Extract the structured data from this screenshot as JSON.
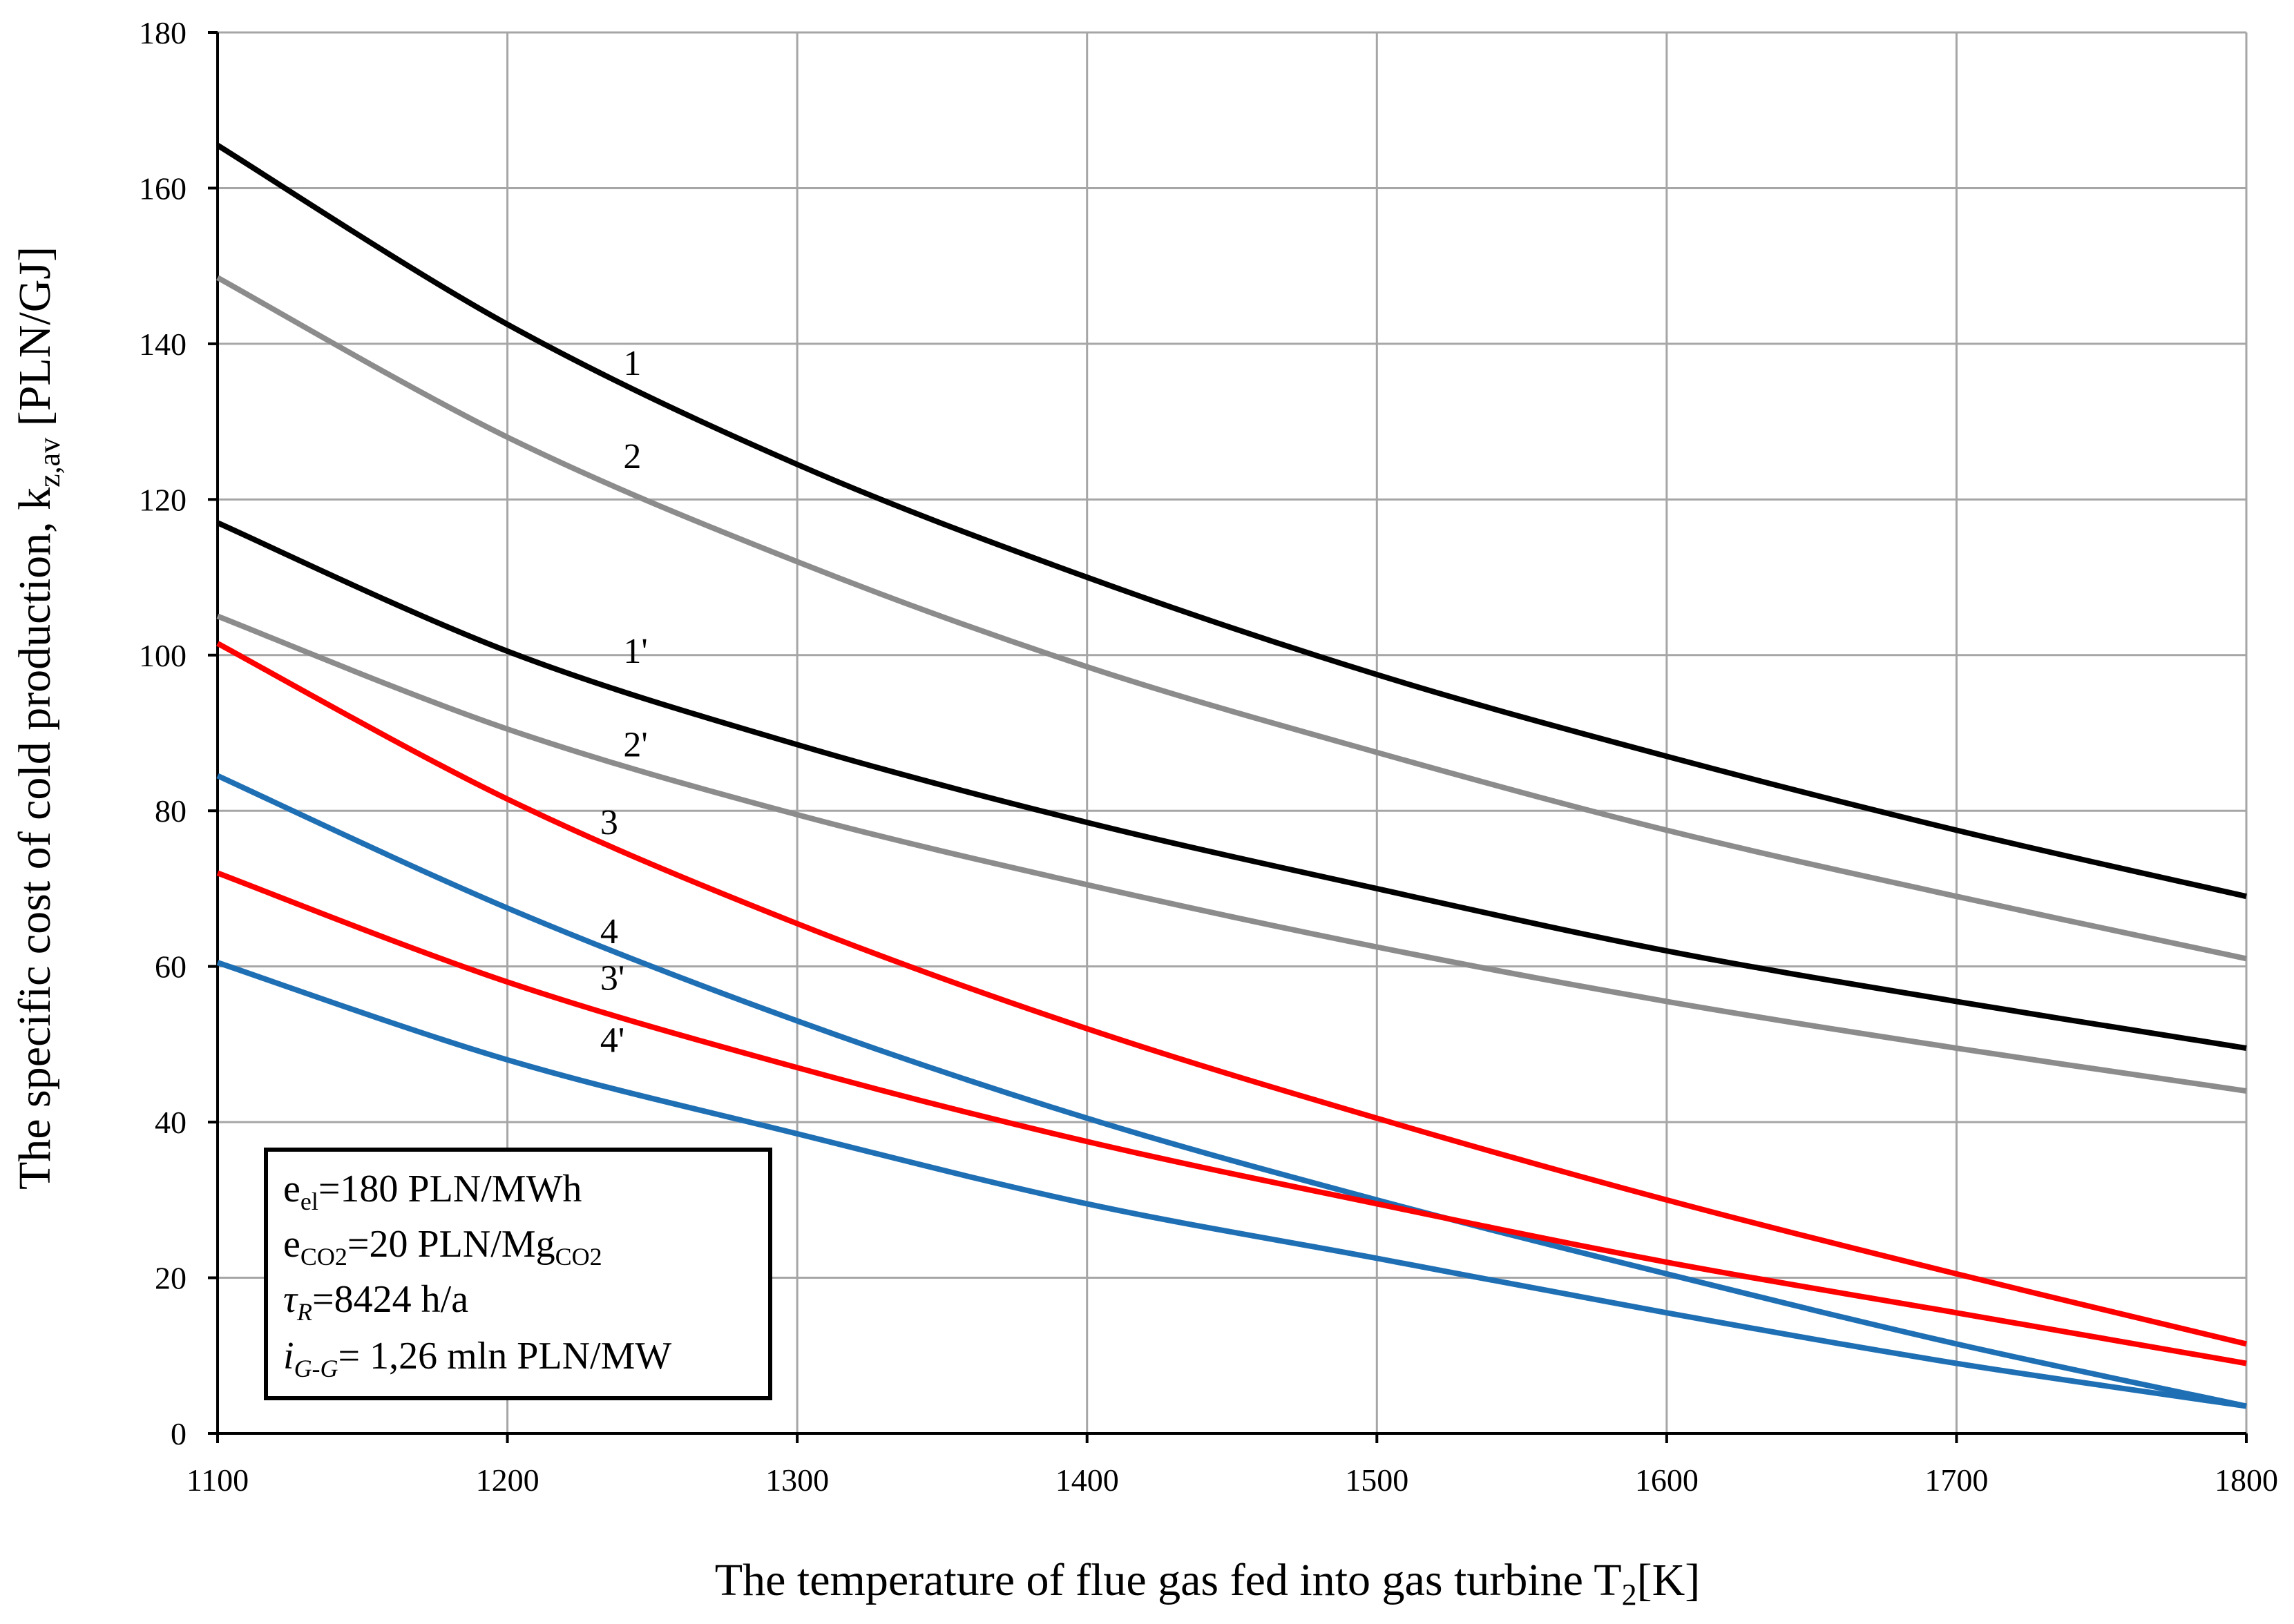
{
  "chart_data": {
    "type": "line",
    "title": "",
    "xlabel": "The temperature of flue gas fed into gas turbine T",
    "xlabel_sub": "2",
    "xlabel_unit": "[K]",
    "ylabel": "The specific cost of cold production, k",
    "ylabel_sub": "z,av",
    "ylabel_unit": " [PLN/GJ]",
    "xlim": [
      1100,
      1800
    ],
    "ylim": [
      0,
      180
    ],
    "xticks": [
      1100,
      1200,
      1300,
      1400,
      1500,
      1600,
      1700,
      1800
    ],
    "yticks": [
      0,
      20,
      40,
      60,
      80,
      100,
      120,
      140,
      160,
      180
    ],
    "grid": true,
    "x": [
      1100,
      1200,
      1300,
      1400,
      1500,
      1600,
      1700,
      1800
    ],
    "series": [
      {
        "name": "1",
        "color": "#000000",
        "label_at": [
          1240,
          136
        ],
        "values": [
          165.5,
          142.5,
          124.5,
          110.0,
          97.5,
          87.0,
          77.5,
          69.0
        ]
      },
      {
        "name": "2",
        "color": "#8c8c8c",
        "label_at": [
          1240,
          124
        ],
        "values": [
          148.5,
          128.0,
          112.0,
          98.5,
          87.5,
          77.5,
          69.0,
          61.0
        ]
      },
      {
        "name": "1'",
        "color": "#000000",
        "label_at": [
          1240,
          99
        ],
        "values": [
          117.0,
          100.5,
          88.5,
          78.5,
          70.0,
          62.0,
          55.5,
          49.5
        ]
      },
      {
        "name": "2'",
        "color": "#8c8c8c",
        "label_at": [
          1240,
          87
        ],
        "values": [
          105.0,
          90.5,
          79.5,
          70.5,
          62.5,
          55.5,
          49.5,
          44.0
        ]
      },
      {
        "name": "3",
        "color": "#ff0000",
        "label_at": [
          1232,
          77
        ],
        "values": [
          101.5,
          81.5,
          65.5,
          52.0,
          40.5,
          30.0,
          20.5,
          11.5
        ]
      },
      {
        "name": "4",
        "color": "#1f6fb4",
        "label_at": [
          1232,
          63
        ],
        "values": [
          84.5,
          67.5,
          53.0,
          40.5,
          30.0,
          20.5,
          11.5,
          3.5
        ]
      },
      {
        "name": "3'",
        "color": "#ff0000",
        "label_at": [
          1232,
          57
        ],
        "values": [
          72.0,
          58.0,
          47.0,
          37.5,
          29.5,
          22.0,
          15.5,
          9.0
        ]
      },
      {
        "name": "4'",
        "color": "#1f6fb4",
        "label_at": [
          1232,
          49
        ],
        "values": [
          60.5,
          48.0,
          38.5,
          29.5,
          22.5,
          15.5,
          9.0,
          3.5
        ]
      }
    ],
    "legend_box": {
      "lines": [
        {
          "parts": [
            {
              "t": "e"
            },
            {
              "t": "el",
              "sub": true
            },
            {
              "t": "=180 PLN/MWh"
            }
          ]
        },
        {
          "parts": [
            {
              "t": "e"
            },
            {
              "t": "CO2",
              "sub": true
            },
            {
              "t": "=20 PLN/Mg"
            },
            {
              "t": "CO2",
              "sub": true
            }
          ]
        },
        {
          "parts": [
            {
              "t": "τ",
              "italic": true
            },
            {
              "t": "R",
              "sub": true,
              "italic": true
            },
            {
              "t": "=8424 h/a"
            }
          ]
        },
        {
          "parts": [
            {
              "t": "i",
              "italic": true
            },
            {
              "t": "G-G",
              "sub": true,
              "italic": true
            },
            {
              "t": "= 1,26 mln PLN/MW"
            }
          ]
        }
      ]
    }
  }
}
